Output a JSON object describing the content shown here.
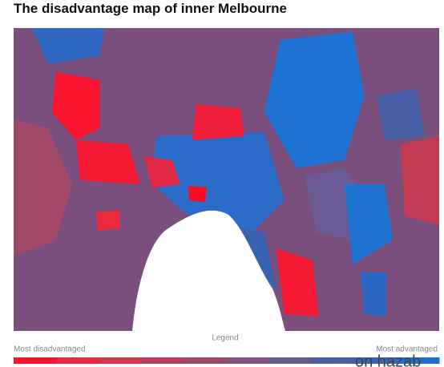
{
  "header": {
    "title": "The disadvantage map of inner Melbourne"
  },
  "legend": {
    "title": "Legend",
    "low_label": "Most disadvantaged",
    "high_label": "Most advantaged",
    "colors": [
      "#fb1430",
      "#e8293f",
      "#d0384f",
      "#b7405d",
      "#9a4b6c",
      "#7f527a",
      "#685a8a",
      "#4d5f9e",
      "#3765b5",
      "#1f6fce"
    ]
  },
  "watermark": "on hazab"
}
